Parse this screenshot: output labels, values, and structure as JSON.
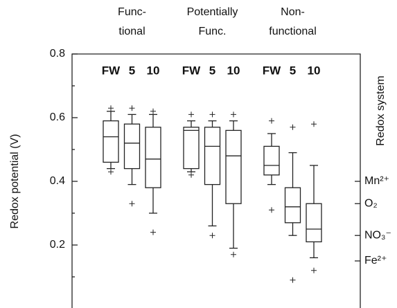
{
  "chart_data": {
    "type": "box",
    "ylabel": "Redox potential (V)",
    "y2label": "Redox system",
    "groups": [
      [
        "Func-",
        "tional"
      ],
      [
        "Potentially",
        "Func."
      ],
      [
        "Non-",
        "functional"
      ]
    ],
    "categories": [
      "FW",
      "5",
      "10",
      "FW",
      "5",
      "10",
      "FW",
      "5",
      "10"
    ],
    "boxes": [
      {
        "whislo": 0.44,
        "q1": 0.46,
        "med": 0.54,
        "q3": 0.59,
        "whishi": 0.62,
        "fliers": [
          0.63,
          0.43
        ]
      },
      {
        "whislo": 0.39,
        "q1": 0.44,
        "med": 0.52,
        "q3": 0.58,
        "whishi": 0.61,
        "fliers": [
          0.63,
          0.33
        ]
      },
      {
        "whislo": 0.3,
        "q1": 0.38,
        "med": 0.47,
        "q3": 0.57,
        "whishi": 0.61,
        "fliers": [
          0.62,
          0.24
        ]
      },
      {
        "whislo": 0.43,
        "q1": 0.44,
        "med": 0.56,
        "q3": 0.57,
        "whishi": 0.59,
        "fliers": [
          0.61,
          0.42
        ]
      },
      {
        "whislo": 0.26,
        "q1": 0.39,
        "med": 0.51,
        "q3": 0.57,
        "whishi": 0.59,
        "fliers": [
          0.61,
          0.23
        ]
      },
      {
        "whislo": 0.19,
        "q1": 0.33,
        "med": 0.48,
        "q3": 0.56,
        "whishi": 0.59,
        "fliers": [
          0.61,
          0.17
        ]
      },
      {
        "whislo": 0.39,
        "q1": 0.42,
        "med": 0.45,
        "q3": 0.51,
        "whishi": 0.55,
        "fliers": [
          0.59,
          0.31
        ]
      },
      {
        "whislo": 0.23,
        "q1": 0.27,
        "med": 0.32,
        "q3": 0.38,
        "whishi": 0.49,
        "fliers": [
          0.57,
          0.09
        ]
      },
      {
        "whislo": 0.16,
        "q1": 0.21,
        "med": 0.25,
        "q3": 0.33,
        "whishi": 0.45,
        "fliers": [
          0.58,
          0.12
        ]
      }
    ],
    "ylim": [
      0,
      0.8
    ],
    "yticks": [
      0.2,
      0.4,
      0.6,
      0.8
    ],
    "yminorticks": [
      0.1,
      0.3,
      0.5,
      0.7
    ],
    "y2lim": [
      0,
      0.8
    ],
    "y2ticks": [
      {
        "value": 0.4,
        "label": "Mn²⁺"
      },
      {
        "value": 0.33,
        "label": "O₂"
      },
      {
        "value": 0.23,
        "label": "NO₃⁻"
      },
      {
        "value": 0.15,
        "label": "Fe²⁺"
      }
    ],
    "color": "#222"
  }
}
